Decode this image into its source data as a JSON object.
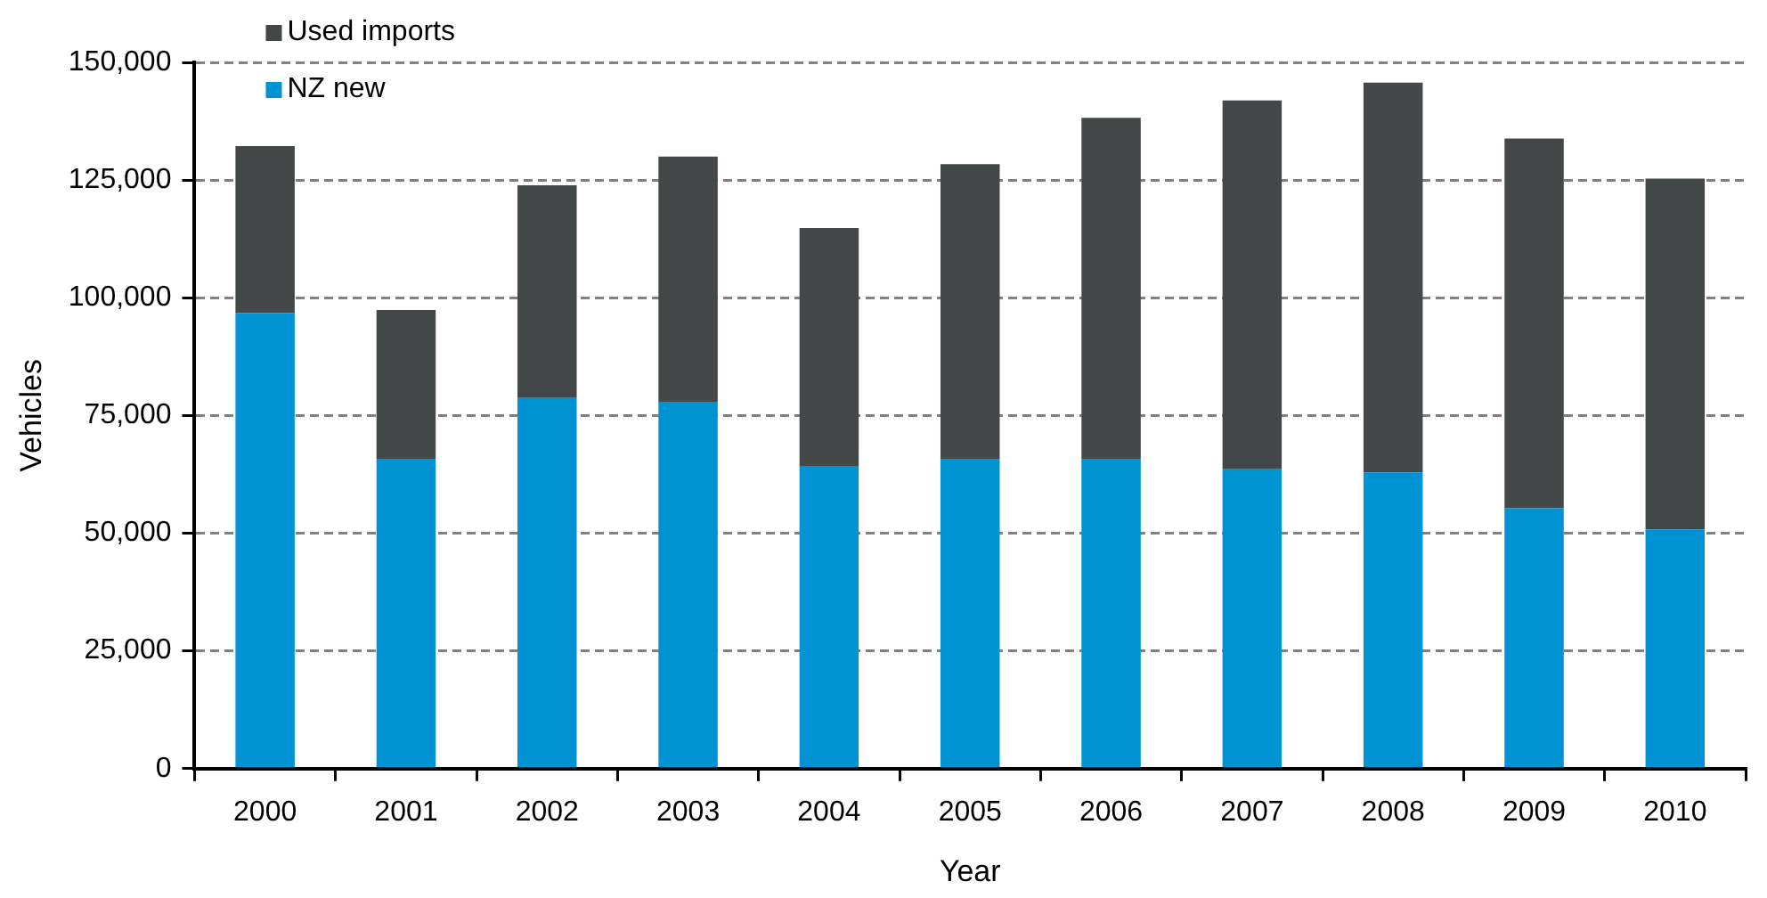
{
  "chart_data": {
    "type": "bar",
    "stacked": true,
    "xlabel": "Year",
    "ylabel": "Vehicles",
    "categories": [
      "2000",
      "2001",
      "2002",
      "2003",
      "2004",
      "2005",
      "2006",
      "2007",
      "2008",
      "2009",
      "2010"
    ],
    "series": [
      {
        "name": "NZ new",
        "color": "#0093d3",
        "values": [
          96800,
          65800,
          78700,
          77900,
          64300,
          65800,
          65800,
          63600,
          62900,
          55300,
          50800
        ]
      },
      {
        "name": "Used imports",
        "color": "#434747",
        "values": [
          35400,
          31600,
          45200,
          52100,
          50500,
          62600,
          72400,
          78300,
          82800,
          78500,
          74500
        ]
      }
    ],
    "ylim": [
      0,
      150000
    ],
    "yticks": [
      {
        "value": 0,
        "label": "0"
      },
      {
        "value": 25000,
        "label": "25,000"
      },
      {
        "value": 50000,
        "label": "50,000"
      },
      {
        "value": 75000,
        "label": "75,000"
      },
      {
        "value": 100000,
        "label": "100,000"
      },
      {
        "value": 125000,
        "label": "125,000"
      },
      {
        "value": 150000,
        "label": "150,000"
      }
    ],
    "grid": "y",
    "legend": "top left"
  }
}
